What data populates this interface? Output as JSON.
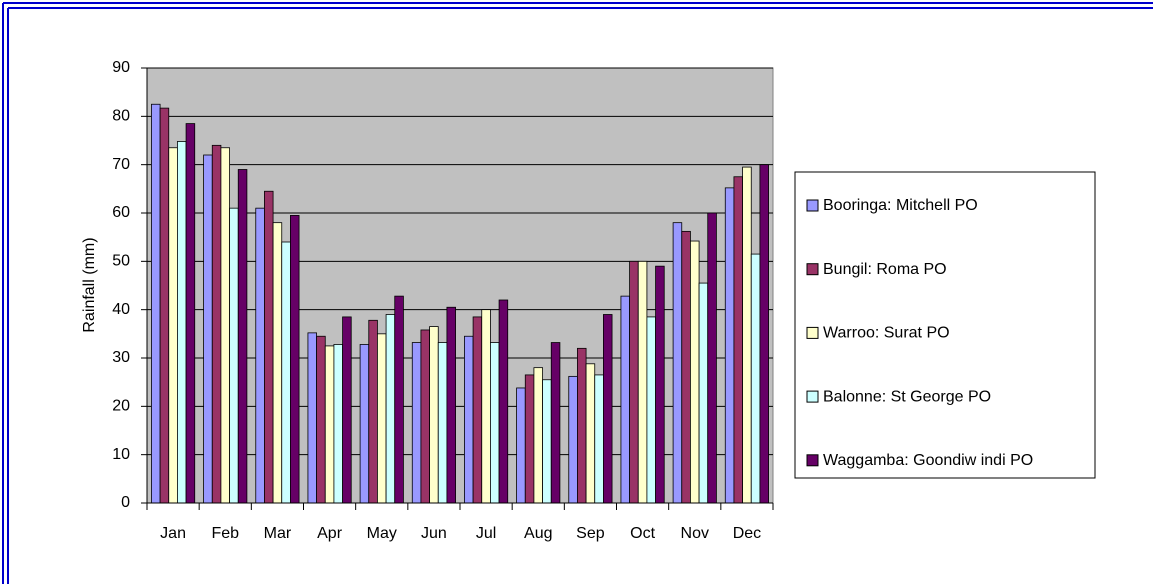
{
  "chart_data": {
    "type": "bar",
    "ylabel": "Rainfall (mm)",
    "categories": [
      "Jan",
      "Feb",
      "Mar",
      "Apr",
      "May",
      "Jun",
      "Jul",
      "Aug",
      "Sep",
      "Oct",
      "Nov",
      "Dec"
    ],
    "series": [
      {
        "name": "Booringa: Mitchell PO",
        "color": "#9999ff",
        "values": [
          82.5,
          72,
          61,
          35.2,
          32.8,
          33.2,
          34.5,
          23.8,
          26.2,
          42.8,
          58,
          65.2
        ]
      },
      {
        "name": "Bungil: Roma PO",
        "color": "#993366",
        "values": [
          81.7,
          74,
          64.5,
          34.5,
          37.8,
          35.8,
          38.5,
          26.5,
          32,
          50,
          56.2,
          67.5
        ]
      },
      {
        "name": "Warroo: Surat PO",
        "color": "#ffffcc",
        "values": [
          73.5,
          73.5,
          58,
          32.5,
          35,
          36.5,
          40,
          28,
          28.8,
          50,
          54.2,
          69.5
        ]
      },
      {
        "name": "Balonne: St George PO",
        "color": "#ccffff",
        "values": [
          74.8,
          61,
          54,
          32.8,
          39,
          33.2,
          33.2,
          25.5,
          26.5,
          38.5,
          45.5,
          51.5
        ]
      },
      {
        "name": "Waggamba: Goondiw indi PO",
        "color": "#660066",
        "values": [
          78.5,
          69,
          59.5,
          38.5,
          42.8,
          40.5,
          42,
          33.2,
          39,
          49,
          60,
          70
        ]
      }
    ],
    "ylim": [
      0,
      90
    ],
    "yticks": [
      0,
      10,
      20,
      30,
      40,
      50,
      60,
      70,
      80,
      90
    ],
    "grid": true,
    "plot_background": "#c0c0c0",
    "legend": "right"
  }
}
